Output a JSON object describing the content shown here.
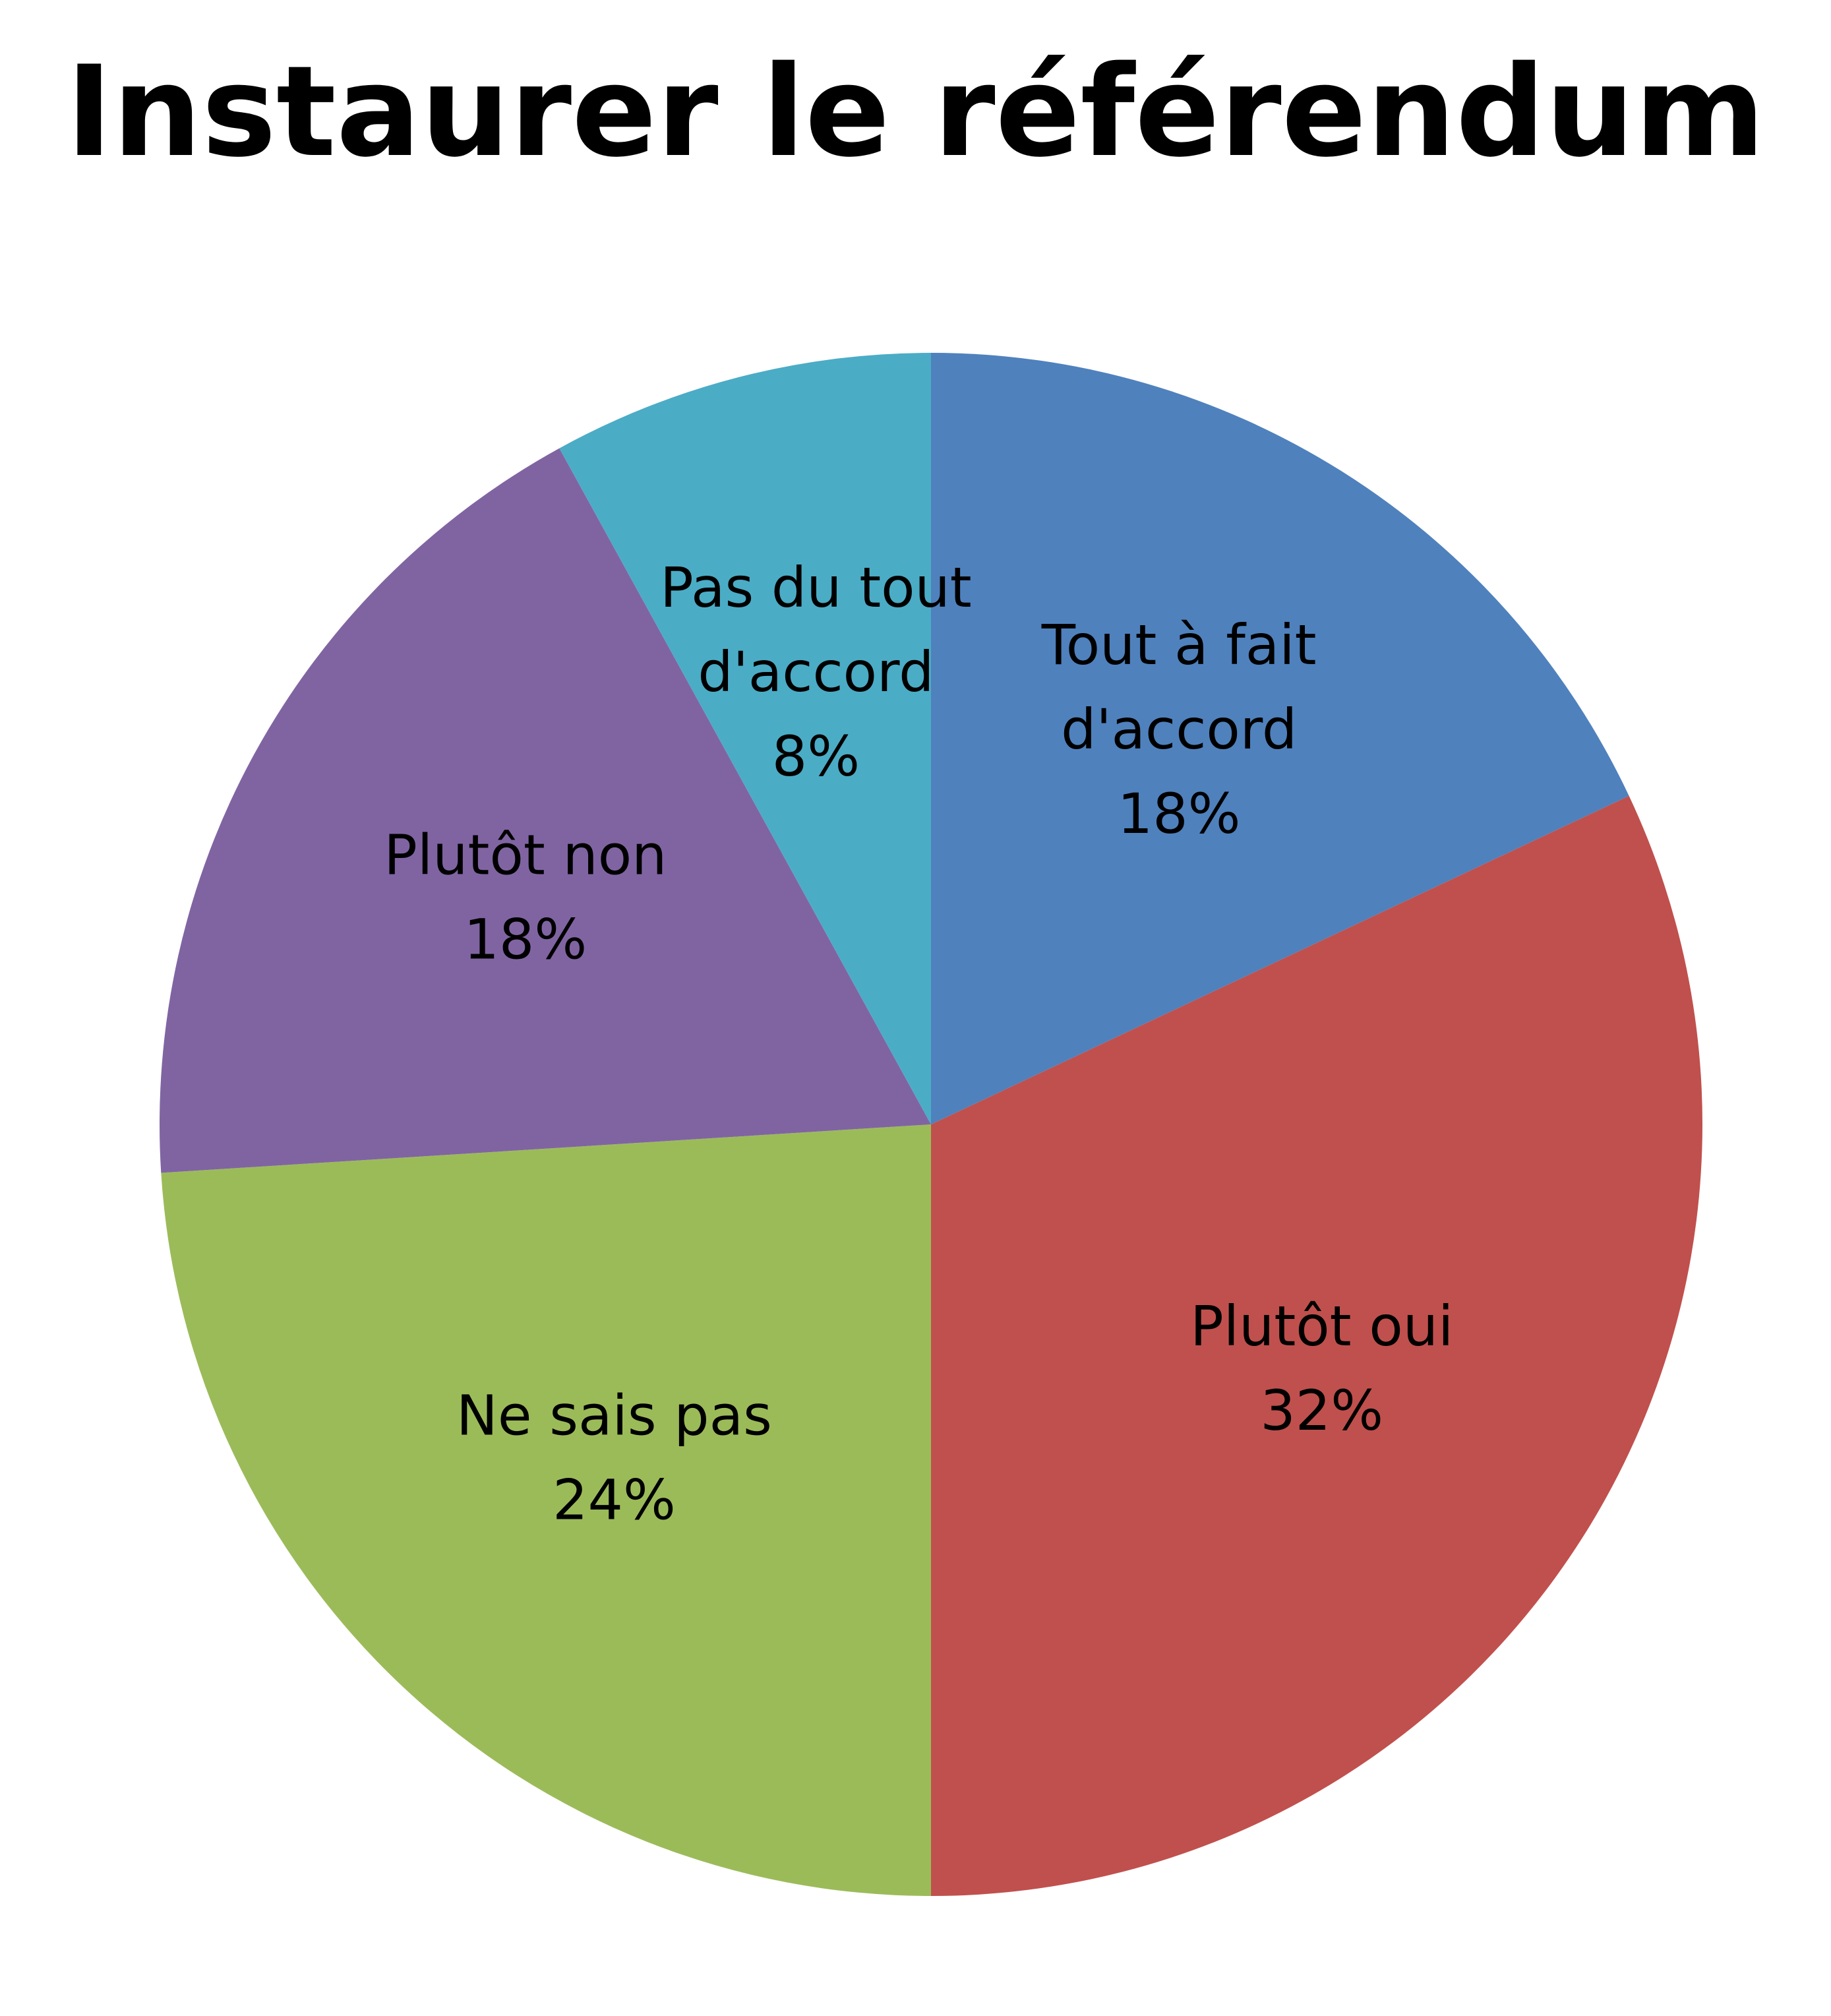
{
  "chart_data": {
    "type": "pie",
    "title": "Instaurer le référendum",
    "slices": [
      {
        "label": [
          "Tout à fait",
          "d'accord"
        ],
        "value": 18,
        "value_label": "18%",
        "color": "#4F81BD"
      },
      {
        "label": [
          "Plutôt oui"
        ],
        "value": 32,
        "value_label": "32%",
        "color": "#C0504D"
      },
      {
        "label": [
          "Ne sais pas"
        ],
        "value": 24,
        "value_label": "24%",
        "color": "#9BBB59"
      },
      {
        "label": [
          "Plutôt non"
        ],
        "value": 18,
        "value_label": "18%",
        "color": "#8064A2"
      },
      {
        "label": [
          "Pas du tout",
          "d'accord"
        ],
        "value": 8,
        "value_label": "8%",
        "color": "#4BACC6"
      }
    ],
    "start_angle": "12 o'clock",
    "direction": "clockwise",
    "legend": "none",
    "data_labels": "inside"
  }
}
